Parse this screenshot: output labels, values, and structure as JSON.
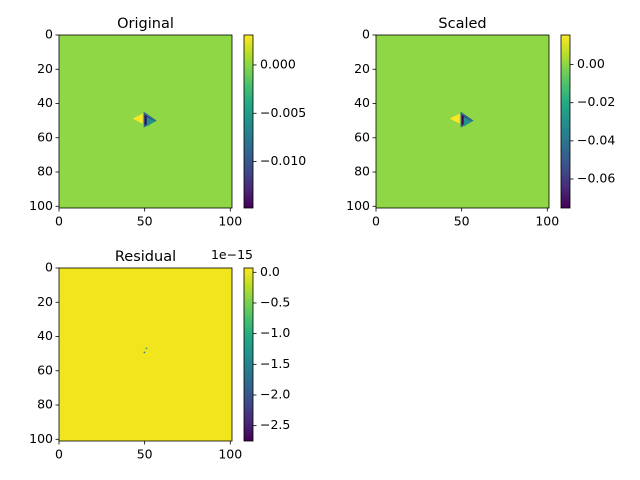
{
  "chart_data": [
    {
      "type": "heatmap",
      "title": "Original",
      "xticks": [
        0,
        50,
        100
      ],
      "yticks": [
        0,
        20,
        40,
        60,
        80,
        100
      ],
      "xlim": [
        0,
        101
      ],
      "ylim": [
        101,
        0
      ],
      "colorbar": {
        "range": [
          -0.0148,
          0.0031
        ],
        "ticks": [
          0.0,
          -0.005,
          -0.01
        ],
        "tick_labels": [
          "0.000",
          "−0.005",
          "−0.010"
        ],
        "offset_text": ""
      },
      "background_color": "#8fd744",
      "feature": {
        "center": [
          50,
          50
        ],
        "description": "small dipole wedge"
      }
    },
    {
      "type": "heatmap",
      "title": "Scaled",
      "xticks": [
        0,
        50,
        100
      ],
      "yticks": [
        0,
        20,
        40,
        60,
        80,
        100
      ],
      "xlim": [
        0,
        101
      ],
      "ylim": [
        101,
        0
      ],
      "colorbar": {
        "range": [
          -0.0752,
          0.0155
        ],
        "ticks": [
          0.0,
          -0.02,
          -0.04,
          -0.06
        ],
        "tick_labels": [
          "0.00",
          "−0.02",
          "−0.04",
          "−0.06"
        ],
        "offset_text": ""
      },
      "background_color": "#8fd744",
      "feature": {
        "center": [
          50,
          50
        ],
        "description": "small dipole wedge"
      }
    },
    {
      "type": "heatmap",
      "title": "Residual",
      "xticks": [
        0,
        50,
        100
      ],
      "yticks": [
        0,
        20,
        40,
        60,
        80,
        100
      ],
      "xlim": [
        0,
        101
      ],
      "ylim": [
        101,
        0
      ],
      "colorbar": {
        "range": [
          -2.75,
          0.07
        ],
        "ticks": [
          0.0,
          -0.5,
          -1.0,
          -1.5,
          -2.0,
          -2.5
        ],
        "tick_labels": [
          "0.0",
          "−0.5",
          "−1.0",
          "−1.5",
          "−2.0",
          "−2.5"
        ],
        "offset_text": "1e−15"
      },
      "background_color": "#f1e51d",
      "feature": {
        "center": [
          50,
          50
        ],
        "description": "tiny specks"
      }
    }
  ]
}
